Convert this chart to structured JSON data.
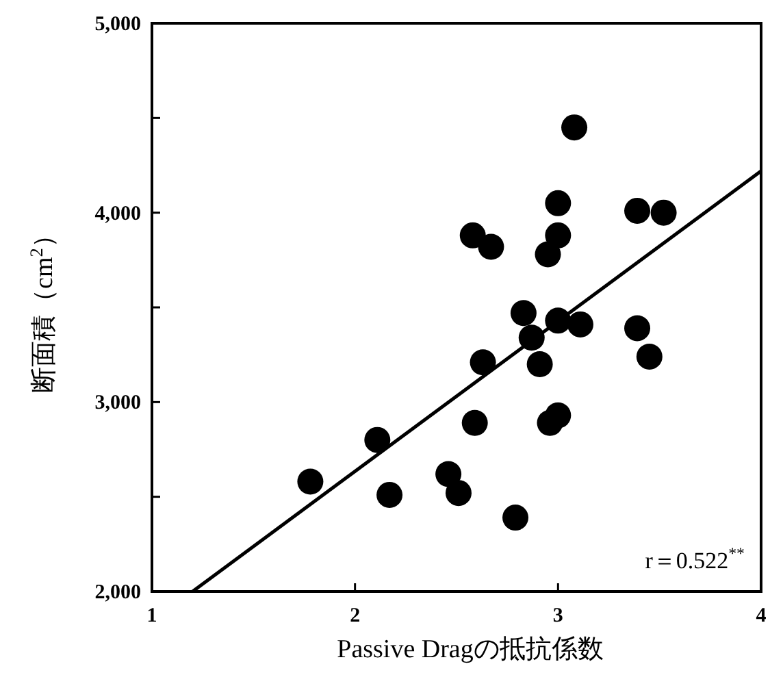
{
  "chart_data": {
    "type": "scatter",
    "xlabel": "Passive Dragの抵抗係数",
    "ylabel": "断面積（cm$^{2}$）",
    "xlim": [
      1,
      4
    ],
    "xticks": [
      1,
      2,
      3,
      4
    ],
    "ylim": [
      2000,
      5000
    ],
    "yticks": [
      {
        "value": 2000,
        "label": "2,000"
      },
      {
        "value": 2500,
        "label": null
      },
      {
        "value": 3000,
        "label": "3,000"
      },
      {
        "value": 3500,
        "label": null
      },
      {
        "value": 4000,
        "label": "4,000"
      },
      {
        "value": 4500,
        "label": null
      },
      {
        "value": 5000,
        "label": "5,000"
      }
    ],
    "series": [
      {
        "marker": "circle",
        "color": "#000000",
        "x": [
          1.78,
          2.11,
          2.17,
          2.46,
          2.51,
          2.59,
          2.79,
          2.58,
          2.67,
          2.63,
          2.83,
          2.87,
          2.91,
          2.95,
          3.0,
          3.0,
          3.0,
          3.11,
          2.96,
          3.0,
          3.08,
          3.39,
          3.52,
          3.39,
          3.45
        ],
        "values": [
          2580,
          2800,
          2510,
          2620,
          2520,
          2890,
          2390,
          3880,
          3820,
          3210,
          3470,
          3340,
          3200,
          3780,
          3880,
          4050,
          3430,
          3410,
          2890,
          2930,
          4450,
          4010,
          4000,
          3390,
          3240
        ]
      },
      {
        "type": "line",
        "marker": "none",
        "color": "#000000",
        "x": [
          1.2,
          4
        ],
        "values": [
          2000,
          4220
        ]
      }
    ],
    "annotations": [
      "r＝0.522$^{**}$"
    ]
  }
}
